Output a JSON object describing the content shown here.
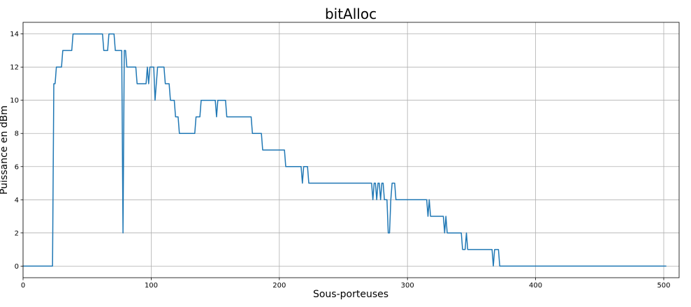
{
  "chart_data": {
    "type": "line",
    "title": "bitAlloc",
    "xlabel": "Sous-porteuses",
    "ylabel": "Puissance en dBm",
    "xlim": [
      0,
      512
    ],
    "ylim": [
      -0.7,
      14.7
    ],
    "xticks": [
      0,
      100,
      200,
      300,
      400,
      500
    ],
    "xtick_labels": [
      "0",
      "100",
      "200",
      "300",
      "400",
      "500"
    ],
    "yticks": [
      0,
      2,
      4,
      6,
      8,
      10,
      12,
      14
    ],
    "ytick_labels": [
      "0",
      "2",
      "4",
      "6",
      "8",
      "10",
      "12",
      "14"
    ],
    "grid": true,
    "series": [
      {
        "color": "#1f77b4",
        "points": [
          [
            0,
            0
          ],
          [
            23,
            0
          ],
          [
            24,
            11
          ],
          [
            25,
            11
          ],
          [
            26,
            12
          ],
          [
            30,
            12
          ],
          [
            31,
            13
          ],
          [
            38,
            13
          ],
          [
            39,
            14
          ],
          [
            62,
            14
          ],
          [
            63,
            13
          ],
          [
            66,
            13
          ],
          [
            67,
            14
          ],
          [
            71,
            14
          ],
          [
            72,
            13
          ],
          [
            77,
            13
          ],
          [
            78,
            2
          ],
          [
            79,
            13
          ],
          [
            80,
            13
          ],
          [
            81,
            12
          ],
          [
            88,
            12
          ],
          [
            89,
            11
          ],
          [
            96,
            11
          ],
          [
            97,
            12
          ],
          [
            98,
            11
          ],
          [
            99,
            12
          ],
          [
            102,
            12
          ],
          [
            103,
            10
          ],
          [
            104,
            11
          ],
          [
            105,
            12
          ],
          [
            110,
            12
          ],
          [
            111,
            11
          ],
          [
            114,
            11
          ],
          [
            115,
            10
          ],
          [
            118,
            10
          ],
          [
            119,
            9
          ],
          [
            121,
            9
          ],
          [
            122,
            8
          ],
          [
            134,
            8
          ],
          [
            135,
            9
          ],
          [
            138,
            9
          ],
          [
            139,
            10
          ],
          [
            150,
            10
          ],
          [
            151,
            9
          ],
          [
            152,
            10
          ],
          [
            158,
            10
          ],
          [
            159,
            9
          ],
          [
            178,
            9
          ],
          [
            179,
            8
          ],
          [
            186,
            8
          ],
          [
            187,
            7
          ],
          [
            204,
            7
          ],
          [
            205,
            6
          ],
          [
            217,
            6
          ],
          [
            218,
            5
          ],
          [
            219,
            6
          ],
          [
            222,
            6
          ],
          [
            223,
            5
          ],
          [
            272,
            5
          ],
          [
            273,
            4
          ],
          [
            274,
            5
          ],
          [
            275,
            5
          ],
          [
            276,
            4
          ],
          [
            277,
            5
          ],
          [
            278,
            5
          ],
          [
            279,
            4
          ],
          [
            280,
            5
          ],
          [
            281,
            5
          ],
          [
            282,
            4
          ],
          [
            284,
            4
          ],
          [
            285,
            2
          ],
          [
            286,
            2
          ],
          [
            287,
            4
          ],
          [
            288,
            5
          ],
          [
            290,
            5
          ],
          [
            291,
            4
          ],
          [
            315,
            4
          ],
          [
            316,
            3
          ],
          [
            317,
            4
          ],
          [
            318,
            3
          ],
          [
            328,
            3
          ],
          [
            329,
            2
          ],
          [
            330,
            3
          ],
          [
            331,
            2
          ],
          [
            342,
            2
          ],
          [
            343,
            1
          ],
          [
            345,
            1
          ],
          [
            346,
            2
          ],
          [
            347,
            1
          ],
          [
            366,
            1
          ],
          [
            367,
            0
          ],
          [
            368,
            1
          ],
          [
            371,
            1
          ],
          [
            372,
            0
          ],
          [
            502,
            0
          ]
        ]
      }
    ]
  }
}
